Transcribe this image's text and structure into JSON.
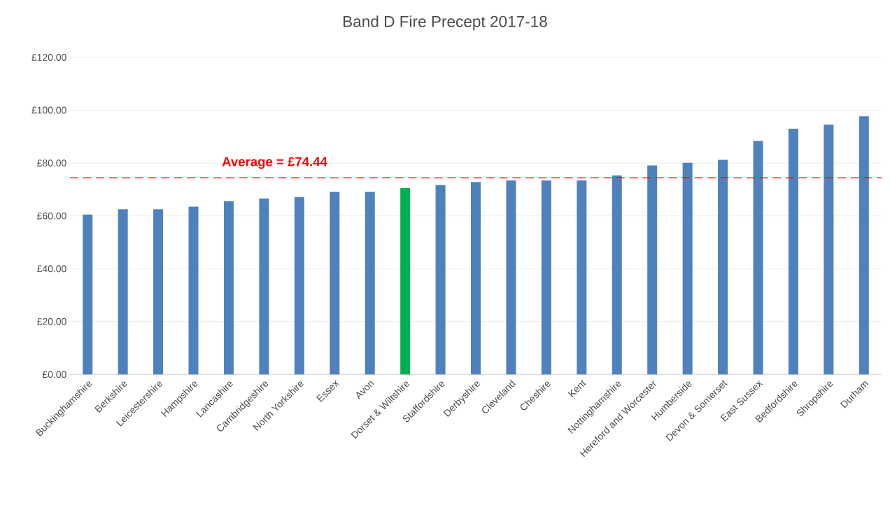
{
  "chart_data": {
    "type": "bar",
    "title": "Band D Fire Precept 2017-18",
    "categories": [
      "Buckinghamshire",
      "Berkshire",
      "Leicestershire",
      "Hampshire",
      "Lancashire",
      "Cambridgeshire",
      "North Yorkshire",
      "Essex",
      "Avon",
      "Dorset & Wiltshire",
      "Staffordshire",
      "Derbyshire",
      "Cleveland",
      "Cheshire",
      "Kent",
      "Nottinghamshire",
      "Hereford and Worcester",
      "Humberside",
      "Devon & Somerset",
      "East Sussex",
      "Bedfordshire",
      "Shropshire",
      "Durham"
    ],
    "values": [
      60.5,
      62.5,
      62.5,
      63.5,
      65.6,
      66.6,
      67.1,
      69.1,
      69.1,
      70.5,
      71.7,
      72.8,
      73.4,
      73.4,
      73.4,
      75.3,
      79.1,
      80.1,
      81.2,
      88.4,
      93.0,
      94.5,
      97.7
    ],
    "colors": [
      "#4f81bd",
      "#4f81bd",
      "#4f81bd",
      "#4f81bd",
      "#4f81bd",
      "#4f81bd",
      "#4f81bd",
      "#4f81bd",
      "#4f81bd",
      "#00b050",
      "#4f81bd",
      "#4f81bd",
      "#4f81bd",
      "#4f81bd",
      "#4f81bd",
      "#4f81bd",
      "#4f81bd",
      "#4f81bd",
      "#4f81bd",
      "#4f81bd",
      "#4f81bd",
      "#4f81bd",
      "#4f81bd"
    ],
    "ylim": [
      0,
      120
    ],
    "yticks": [
      {
        "value": 0,
        "label": "£0.00"
      },
      {
        "value": 20,
        "label": "£20.00"
      },
      {
        "value": 40,
        "label": "£40.00"
      },
      {
        "value": 60,
        "label": "£60.00"
      },
      {
        "value": 80,
        "label": "£80.00"
      },
      {
        "value": 100,
        "label": "£100.00"
      },
      {
        "value": 120,
        "label": "£120.00"
      }
    ],
    "grid": "y",
    "ref_lines": [
      {
        "axis": "y",
        "value": 74.44,
        "label": "Average = £74.44",
        "color": "#ff0000",
        "line_style": "dashed"
      }
    ]
  }
}
